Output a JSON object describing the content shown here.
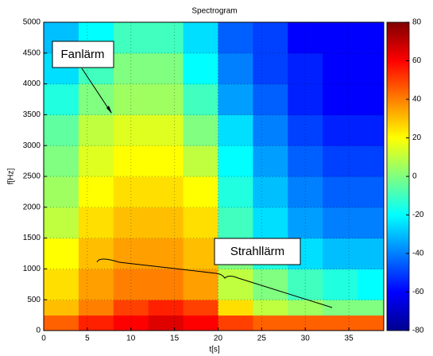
{
  "chart_data": {
    "type": "heatmap",
    "title": "Spectrogram",
    "x_label": "t[s]",
    "y_label": "f[Hz]",
    "xbins": [
      0,
      4,
      8,
      12,
      16,
      20,
      24,
      28,
      32,
      36,
      39
    ],
    "ybins": [
      0,
      250,
      500,
      1000,
      1500,
      2000,
      2500,
      3000,
      3500,
      4000,
      4500,
      5000
    ],
    "z": [
      [
        45,
        55,
        60,
        65,
        60,
        50,
        45,
        45,
        45,
        45
      ],
      [
        30,
        40,
        50,
        55,
        50,
        25,
        10,
        5,
        0,
        0
      ],
      [
        25,
        35,
        40,
        40,
        35,
        10,
        0,
        -10,
        -15,
        -20
      ],
      [
        20,
        30,
        35,
        35,
        30,
        0,
        -15,
        -25,
        -30,
        -30
      ],
      [
        10,
        25,
        30,
        30,
        25,
        -10,
        -25,
        -35,
        -40,
        -40
      ],
      [
        5,
        20,
        25,
        25,
        20,
        -15,
        -30,
        -40,
        -45,
        -45
      ],
      [
        0,
        15,
        20,
        20,
        10,
        -20,
        -35,
        -45,
        -50,
        -50
      ],
      [
        -5,
        10,
        15,
        15,
        0,
        -25,
        -40,
        -50,
        -55,
        -55
      ],
      [
        -15,
        0,
        5,
        5,
        -10,
        -35,
        -45,
        -55,
        -60,
        -60
      ],
      [
        -25,
        -10,
        0,
        0,
        -20,
        -40,
        -50,
        -55,
        -60,
        -60
      ],
      [
        -30,
        -20,
        -10,
        -10,
        -25,
        -45,
        -50,
        -60,
        -60,
        -60
      ]
    ],
    "colormap": "jet",
    "xlim": [
      0,
      39
    ],
    "xticks": [
      0,
      5,
      10,
      15,
      20,
      25,
      30,
      35
    ],
    "ylim": [
      0,
      5000
    ],
    "yticks": [
      0,
      500,
      1000,
      1500,
      2000,
      2500,
      3000,
      3500,
      4000,
      4500,
      5000
    ],
    "clim": [
      -80,
      80
    ],
    "cticks": [
      -80,
      -60,
      -40,
      -20,
      0,
      20,
      40,
      60,
      80
    ],
    "grid": true,
    "annotations": [
      {
        "text": "Fanlärm"
      },
      {
        "text": "Strahllärm"
      }
    ]
  }
}
